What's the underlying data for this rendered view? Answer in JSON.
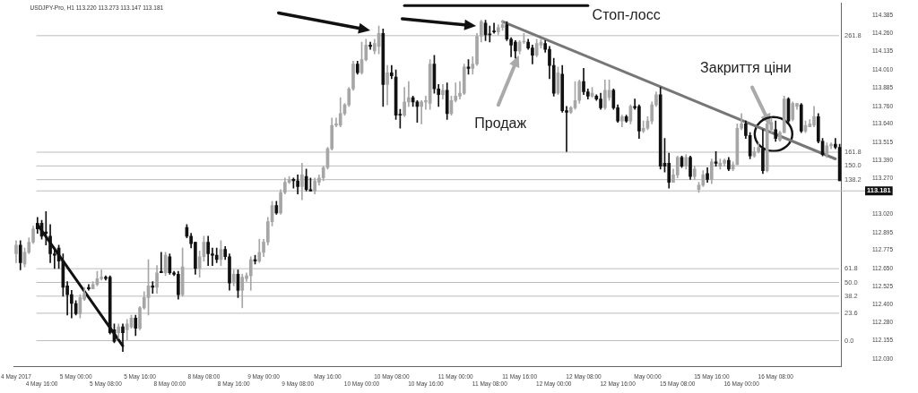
{
  "chart_data": {
    "type": "candlestick",
    "title": "USDJPY-Pro, H1 113.220 113.273 113.147 113.181",
    "categories": [
      "4 May 2017",
      null,
      null,
      null,
      null,
      null,
      "4 May 16:00",
      null,
      null,
      null,
      null,
      null,
      null,
      null,
      "5 May 00:00",
      null,
      null,
      null,
      null,
      null,
      null,
      "5 May 08:00",
      null,
      null,
      null,
      null,
      null,
      null,
      null,
      "5 May 16:00",
      null,
      null,
      null,
      null,
      null,
      null,
      "8 May 00:00",
      null,
      null,
      null,
      null,
      null,
      null,
      null,
      "8 May 08:00",
      null,
      null,
      null,
      null,
      null,
      null,
      "8 May 16:00",
      null,
      null,
      null,
      null,
      null,
      null,
      "9 May 00:00",
      null,
      null,
      null,
      null,
      null,
      null,
      null,
      "9 May 08:00",
      null,
      null,
      null,
      null,
      null,
      null,
      "May 16:00",
      null,
      null,
      null,
      null,
      null,
      null,
      null,
      "10 May 00:00",
      null,
      null,
      null,
      null,
      null,
      null,
      "10 May 08:00",
      null,
      null,
      null,
      null,
      null,
      null,
      null,
      "10 May 16:00",
      null,
      null,
      null,
      null,
      null,
      null,
      "11 May 00:00",
      null,
      null,
      null,
      null,
      null,
      null,
      null,
      "11 May 08:00",
      null,
      null,
      null,
      null,
      null,
      null,
      "11 May 16:00",
      null,
      null,
      null,
      null,
      null,
      null,
      null,
      "12 May 00:00",
      null,
      null,
      null,
      null,
      null,
      null,
      "12 May 08:00",
      null,
      null,
      null,
      null,
      null,
      null,
      null,
      "12 May 16:00",
      null,
      null,
      null,
      null,
      null,
      null,
      "May 00:00",
      null,
      null,
      null,
      null,
      null,
      null,
      "15 May 08:00",
      null,
      null,
      null,
      null,
      null,
      null,
      null,
      "15 May 16:00",
      null,
      null,
      null,
      null,
      null,
      null,
      "16 May 00:00",
      null,
      null,
      null,
      null,
      null,
      null,
      null,
      "16 May 08:00",
      null,
      null,
      null,
      null,
      null,
      null,
      null,
      null,
      null,
      null,
      null,
      null,
      null,
      null,
      null
    ],
    "ohlc": [
      [
        112.75,
        112.84,
        112.69,
        112.81
      ],
      [
        112.81,
        112.84,
        112.64,
        112.69
      ],
      [
        112.68,
        112.79,
        112.66,
        112.76
      ],
      [
        112.76,
        112.86,
        112.75,
        112.83
      ],
      [
        112.83,
        112.94,
        112.82,
        112.92
      ],
      [
        112.96,
        113.0,
        112.89,
        112.92
      ],
      [
        112.96,
        112.98,
        112.85,
        112.87
      ],
      [
        112.9,
        113.04,
        112.81,
        112.89
      ],
      [
        112.87,
        112.95,
        112.69,
        112.75
      ],
      [
        112.75,
        112.79,
        112.65,
        112.74
      ],
      [
        112.79,
        112.81,
        112.65,
        112.7
      ],
      [
        112.7,
        112.75,
        112.46,
        112.52
      ],
      [
        112.53,
        112.56,
        112.33,
        112.47
      ],
      [
        112.47,
        112.5,
        112.31,
        112.41
      ],
      [
        112.41,
        112.43,
        112.33,
        112.34
      ],
      [
        112.34,
        112.47,
        112.31,
        112.45
      ],
      [
        112.44,
        112.52,
        112.43,
        112.48
      ],
      [
        112.52,
        112.54,
        112.5,
        112.51
      ],
      [
        112.51,
        112.56,
        112.51,
        112.54
      ],
      [
        112.54,
        112.63,
        112.53,
        112.58
      ],
      [
        112.58,
        112.64,
        112.57,
        112.59
      ],
      [
        112.59,
        112.6,
        112.57,
        112.58
      ],
      [
        112.59,
        112.6,
        112.2,
        112.21
      ],
      [
        112.23,
        112.27,
        112.14,
        112.15
      ],
      [
        112.21,
        112.27,
        112.17,
        112.25
      ],
      [
        112.25,
        112.27,
        112.08,
        112.21
      ],
      [
        112.23,
        112.3,
        112.16,
        112.27
      ],
      [
        112.25,
        112.33,
        112.24,
        112.31
      ],
      [
        112.31,
        112.33,
        112.19,
        112.24
      ],
      [
        112.24,
        112.39,
        112.23,
        112.38
      ],
      [
        112.38,
        112.49,
        112.37,
        112.45
      ],
      [
        112.45,
        112.71,
        112.33,
        112.53
      ],
      [
        112.53,
        112.56,
        112.48,
        112.52
      ],
      [
        112.52,
        112.67,
        112.48,
        112.62
      ],
      [
        112.63,
        112.76,
        112.62,
        112.62
      ],
      [
        112.62,
        112.76,
        112.6,
        112.74
      ],
      [
        112.73,
        112.75,
        112.61,
        112.62
      ],
      [
        112.62,
        112.63,
        112.6,
        112.61
      ],
      [
        112.61,
        112.63,
        112.44,
        112.47
      ],
      [
        112.47,
        112.79,
        112.46,
        112.66
      ],
      [
        112.93,
        112.95,
        112.86,
        112.87
      ],
      [
        112.87,
        112.89,
        112.79,
        112.82
      ],
      [
        112.83,
        112.83,
        112.61,
        112.65
      ],
      [
        112.65,
        112.77,
        112.59,
        112.73
      ],
      [
        112.73,
        112.87,
        112.7,
        112.83
      ],
      [
        112.83,
        112.87,
        112.67,
        112.75
      ],
      [
        112.75,
        112.79,
        112.67,
        112.74
      ],
      [
        112.74,
        112.79,
        112.69,
        112.71
      ],
      [
        112.71,
        112.84,
        112.67,
        112.78
      ],
      [
        112.78,
        112.8,
        112.71,
        112.73
      ],
      [
        112.73,
        112.75,
        112.5,
        112.55
      ],
      [
        112.55,
        112.64,
        112.53,
        112.61
      ],
      [
        112.61,
        112.64,
        112.45,
        112.5
      ],
      [
        112.5,
        112.61,
        112.38,
        112.59
      ],
      [
        112.58,
        112.62,
        112.56,
        112.6
      ],
      [
        112.6,
        112.73,
        112.5,
        112.71
      ],
      [
        112.71,
        112.74,
        112.68,
        112.7
      ],
      [
        112.7,
        112.85,
        112.69,
        112.76
      ],
      [
        112.76,
        112.85,
        112.73,
        112.83
      ],
      [
        112.83,
        113.0,
        112.81,
        112.97
      ],
      [
        112.97,
        113.11,
        112.94,
        113.08
      ],
      [
        113.08,
        113.11,
        113.02,
        113.03
      ],
      [
        113.03,
        113.19,
        113.02,
        113.17
      ],
      [
        113.17,
        113.27,
        113.16,
        113.24
      ],
      [
        113.24,
        113.28,
        113.23,
        113.26
      ],
      [
        113.26,
        113.27,
        113.2,
        113.25
      ],
      [
        113.25,
        113.29,
        113.16,
        113.21
      ],
      [
        113.21,
        113.37,
        113.12,
        113.29
      ],
      [
        113.28,
        113.33,
        113.18,
        113.19
      ],
      [
        113.19,
        113.27,
        113.18,
        113.18
      ],
      [
        113.18,
        113.27,
        113.16,
        113.25
      ],
      [
        113.24,
        113.29,
        113.22,
        113.27
      ],
      [
        113.27,
        113.35,
        113.25,
        113.34
      ],
      [
        113.34,
        113.48,
        113.33,
        113.47
      ],
      [
        113.47,
        113.68,
        113.46,
        113.63
      ],
      [
        113.63,
        113.68,
        113.62,
        113.64
      ],
      [
        113.63,
        113.82,
        113.62,
        113.71
      ],
      [
        113.71,
        113.78,
        113.7,
        113.77
      ],
      [
        113.77,
        113.89,
        113.76,
        113.88
      ],
      [
        113.88,
        114.07,
        113.87,
        114.05
      ],
      [
        114.05,
        114.07,
        113.98,
        113.99
      ],
      [
        113.99,
        114.2,
        113.98,
        114.08
      ],
      [
        114.08,
        114.22,
        114.07,
        114.18
      ],
      [
        114.18,
        114.2,
        114.15,
        114.17
      ],
      [
        114.14,
        114.22,
        114.12,
        114.19
      ],
      [
        114.17,
        114.31,
        114.12,
        114.26
      ],
      [
        114.26,
        114.29,
        113.76,
        113.91
      ],
      [
        113.91,
        114.04,
        113.77,
        113.99
      ],
      [
        113.99,
        114.04,
        113.95,
        113.97
      ],
      [
        113.96,
        114.01,
        113.67,
        113.7
      ],
      [
        113.7,
        113.74,
        113.61,
        113.7
      ],
      [
        113.7,
        113.89,
        113.69,
        113.79
      ],
      [
        113.79,
        113.93,
        113.76,
        113.82
      ],
      [
        113.82,
        113.83,
        113.76,
        113.79
      ],
      [
        113.79,
        113.8,
        113.65,
        113.76
      ],
      [
        113.76,
        113.8,
        113.64,
        113.79
      ],
      [
        113.79,
        113.83,
        113.74,
        113.8
      ],
      [
        113.78,
        114.08,
        113.74,
        114.05
      ],
      [
        114.05,
        114.11,
        113.85,
        113.88
      ],
      [
        113.88,
        113.91,
        113.76,
        113.84
      ],
      [
        113.84,
        113.91,
        113.81,
        113.87
      ],
      [
        113.87,
        113.92,
        113.67,
        113.71
      ],
      [
        113.71,
        113.83,
        113.7,
        113.8
      ],
      [
        113.8,
        113.92,
        113.79,
        113.83
      ],
      [
        113.83,
        113.93,
        113.81,
        113.85
      ],
      [
        113.85,
        114.05,
        113.84,
        114.03
      ],
      [
        114.03,
        114.08,
        113.98,
        114.02
      ],
      [
        114.02,
        114.1,
        113.98,
        114.05
      ],
      [
        114.05,
        114.26,
        114.04,
        114.24
      ],
      [
        114.24,
        114.35,
        114.2,
        114.34
      ],
      [
        114.33,
        114.35,
        114.21,
        114.25
      ],
      [
        114.25,
        114.31,
        114.2,
        114.25
      ],
      [
        114.27,
        114.33,
        114.26,
        114.27
      ],
      [
        114.27,
        114.32,
        114.25,
        114.3
      ],
      [
        114.3,
        114.35,
        114.28,
        114.32
      ],
      [
        114.32,
        114.34,
        114.21,
        114.22
      ],
      [
        114.22,
        114.23,
        114.1,
        114.18
      ],
      [
        114.2,
        114.21,
        114.09,
        114.14
      ],
      [
        114.14,
        114.21,
        114.12,
        114.2
      ],
      [
        114.2,
        114.26,
        114.19,
        114.2
      ],
      [
        114.2,
        114.22,
        114.15,
        114.16
      ],
      [
        114.16,
        114.18,
        114.05,
        114.11
      ],
      [
        114.11,
        114.22,
        114.1,
        114.19
      ],
      [
        114.18,
        114.22,
        114.16,
        114.2
      ],
      [
        114.19,
        114.21,
        114.13,
        114.15
      ],
      [
        114.15,
        114.17,
        113.95,
        114.04
      ],
      [
        114.04,
        114.09,
        113.83,
        113.85
      ],
      [
        113.85,
        114.03,
        113.84,
        113.99
      ],
      [
        113.98,
        114.04,
        113.72,
        113.73
      ],
      [
        113.73,
        113.76,
        113.45,
        113.72
      ],
      [
        113.72,
        113.76,
        113.71,
        113.75
      ],
      [
        113.75,
        113.93,
        113.74,
        113.8
      ],
      [
        113.8,
        113.94,
        113.78,
        113.93
      ],
      [
        113.93,
        114.02,
        113.84,
        113.86
      ],
      [
        113.86,
        113.88,
        113.81,
        113.83
      ],
      [
        113.83,
        113.89,
        113.82,
        113.85
      ],
      [
        113.83,
        113.84,
        113.8,
        113.81
      ],
      [
        113.81,
        113.85,
        113.74,
        113.75
      ],
      [
        113.75,
        113.94,
        113.74,
        113.87
      ],
      [
        113.82,
        113.94,
        113.8,
        113.87
      ],
      [
        113.87,
        113.88,
        113.74,
        113.75
      ],
      [
        113.75,
        113.77,
        113.65,
        113.66
      ],
      [
        113.66,
        113.7,
        113.62,
        113.69
      ],
      [
        113.69,
        113.7,
        113.65,
        113.66
      ],
      [
        113.66,
        113.77,
        113.64,
        113.76
      ],
      [
        113.76,
        113.81,
        113.74,
        113.75
      ],
      [
        113.76,
        113.77,
        113.54,
        113.59
      ],
      [
        113.59,
        113.66,
        113.58,
        113.61
      ],
      [
        113.61,
        113.69,
        113.6,
        113.66
      ],
      [
        113.66,
        113.79,
        113.64,
        113.77
      ],
      [
        113.77,
        113.86,
        113.76,
        113.84
      ],
      [
        113.84,
        113.89,
        113.33,
        113.35
      ],
      [
        113.37,
        113.54,
        113.31,
        113.35
      ],
      [
        113.37,
        113.44,
        113.2,
        113.24
      ],
      [
        113.24,
        113.33,
        113.24,
        113.29
      ],
      [
        113.29,
        113.42,
        113.27,
        113.41
      ],
      [
        113.41,
        113.42,
        113.34,
        113.35
      ],
      [
        113.35,
        113.43,
        113.33,
        113.41
      ],
      [
        113.41,
        113.42,
        113.26,
        113.28
      ],
      [
        113.28,
        113.35,
        113.26,
        113.33
      ],
      [
        113.19,
        113.24,
        113.17,
        113.22
      ],
      [
        113.22,
        113.32,
        113.21,
        113.29
      ],
      [
        113.3,
        113.34,
        113.24,
        113.26
      ],
      [
        113.26,
        113.4,
        113.23,
        113.38
      ],
      [
        113.38,
        113.45,
        113.35,
        113.37
      ],
      [
        113.35,
        113.4,
        113.33,
        113.37
      ],
      [
        113.37,
        113.4,
        113.35,
        113.39
      ],
      [
        113.39,
        113.41,
        113.32,
        113.33
      ],
      [
        113.33,
        113.38,
        113.32,
        113.36
      ],
      [
        113.36,
        113.64,
        113.36,
        113.61
      ],
      [
        113.61,
        113.71,
        113.6,
        113.64
      ],
      [
        113.64,
        113.66,
        113.54,
        113.56
      ],
      [
        113.56,
        113.58,
        113.4,
        113.42
      ],
      [
        113.42,
        113.48,
        113.41,
        113.45
      ],
      [
        113.45,
        113.51,
        113.44,
        113.48
      ],
      [
        113.47,
        113.6,
        113.3,
        113.32
      ],
      [
        113.32,
        113.66,
        113.31,
        113.64
      ],
      [
        113.6,
        113.68,
        113.58,
        113.65
      ],
      [
        113.6,
        113.66,
        113.52,
        113.54
      ],
      [
        113.53,
        113.59,
        113.52,
        113.58
      ],
      [
        113.58,
        113.83,
        113.58,
        113.81
      ],
      [
        113.81,
        113.82,
        113.64,
        113.66
      ],
      [
        113.67,
        113.79,
        113.66,
        113.78
      ],
      [
        113.76,
        113.78,
        113.74,
        113.78
      ],
      [
        113.77,
        113.78,
        113.58,
        113.59
      ],
      [
        113.59,
        113.66,
        113.58,
        113.63
      ],
      [
        113.62,
        113.67,
        113.62,
        113.64
      ],
      [
        113.63,
        113.76,
        113.62,
        113.69
      ],
      [
        113.69,
        113.71,
        113.51,
        113.52
      ],
      [
        113.52,
        113.54,
        113.42,
        113.43
      ],
      [
        113.43,
        113.51,
        113.41,
        113.49
      ],
      [
        113.49,
        113.51,
        113.47,
        113.5
      ],
      [
        113.5,
        113.54,
        113.47,
        113.48
      ],
      [
        113.48,
        113.5,
        113.25,
        113.25
      ]
    ],
    "colors": [
      "#a6a6a6",
      "#111111",
      "#a6a6a6",
      "#a6a6a6",
      "#a6a6a6",
      "#111111",
      "#111111",
      "#111111",
      "#111111",
      "#111111",
      "#111111",
      "#111111",
      "#111111",
      "#111111",
      "#111111",
      "#a6a6a6",
      "#a6a6a6",
      "#111111",
      "#a6a6a6",
      "#a6a6a6",
      "#a6a6a6",
      "#111111",
      "#111111",
      "#111111",
      "#a6a6a6",
      "#111111",
      "#a6a6a6",
      "#a6a6a6",
      "#111111",
      "#a6a6a6",
      "#a6a6a6",
      "#a6a6a6",
      "#111111",
      "#a6a6a6",
      "#111111",
      "#a6a6a6",
      "#111111",
      "#111111",
      "#111111",
      "#a6a6a6",
      "#111111",
      "#111111",
      "#111111",
      "#a6a6a6",
      "#a6a6a6",
      "#111111",
      "#111111",
      "#111111",
      "#a6a6a6",
      "#111111",
      "#111111",
      "#a6a6a6",
      "#111111",
      "#a6a6a6",
      "#a6a6a6",
      "#a6a6a6",
      "#111111",
      "#a6a6a6",
      "#a6a6a6",
      "#a6a6a6",
      "#a6a6a6",
      "#111111",
      "#a6a6a6",
      "#a6a6a6",
      "#a6a6a6",
      "#111111",
      "#111111",
      "#a6a6a6",
      "#111111",
      "#111111",
      "#a6a6a6",
      "#a6a6a6",
      "#a6a6a6",
      "#a6a6a6",
      "#a6a6a6",
      "#a6a6a6",
      "#a6a6a6",
      "#a6a6a6",
      "#a6a6a6",
      "#a6a6a6",
      "#111111",
      "#a6a6a6",
      "#a6a6a6",
      "#111111",
      "#a6a6a6",
      "#a6a6a6",
      "#111111",
      "#a6a6a6",
      "#111111",
      "#111111",
      "#111111",
      "#a6a6a6",
      "#a6a6a6",
      "#111111",
      "#111111",
      "#a6a6a6",
      "#a6a6a6",
      "#a6a6a6",
      "#111111",
      "#111111",
      "#a6a6a6",
      "#111111",
      "#a6a6a6",
      "#a6a6a6",
      "#a6a6a6",
      "#a6a6a6",
      "#111111",
      "#a6a6a6",
      "#a6a6a6",
      "#a6a6a6",
      "#111111",
      "#111111",
      "#111111",
      "#a6a6a6",
      "#a6a6a6",
      "#111111",
      "#111111",
      "#111111",
      "#a6a6a6",
      "#a6a6a6",
      "#111111",
      "#111111",
      "#a6a6a6",
      "#a6a6a6",
      "#111111",
      "#111111",
      "#111111",
      "#a6a6a6",
      "#111111",
      "#111111",
      "#a6a6a6",
      "#a6a6a6",
      "#a6a6a6",
      "#111111",
      "#111111",
      "#a6a6a6",
      "#111111",
      "#111111",
      "#a6a6a6",
      "#a6a6a6",
      "#111111",
      "#111111",
      "#a6a6a6",
      "#111111",
      "#a6a6a6",
      "#111111",
      "#111111",
      "#a6a6a6",
      "#a6a6a6",
      "#a6a6a6",
      "#a6a6a6",
      "#111111",
      "#111111",
      "#111111",
      "#a6a6a6",
      "#a6a6a6",
      "#111111",
      "#a6a6a6",
      "#111111",
      "#a6a6a6",
      "#a6a6a6",
      "#a6a6a6",
      "#111111",
      "#a6a6a6",
      "#111111",
      "#a6a6a6",
      "#a6a6a6",
      "#111111",
      "#a6a6a6",
      "#a6a6a6",
      "#a6a6a6",
      "#111111",
      "#111111",
      "#a6a6a6",
      "#a6a6a6",
      "#111111",
      "#a6a6a6",
      "#a6a6a6",
      "#111111",
      "#a6a6a6",
      "#a6a6a6",
      "#111111",
      "#a6a6a6",
      "#a6a6a6",
      "#111111",
      "#a6a6a6",
      "#a6a6a6",
      "#a6a6a6",
      "#111111",
      "#111111",
      "#a6a6a6",
      "#a6a6a6",
      "#111111",
      "#111111"
    ],
    "series": [
      {
        "type": "line",
        "color": "#111111",
        "values": [
          null,
          null,
          null,
          null,
          null,
          112.95,
          null,
          null,
          null,
          null,
          null,
          null,
          null,
          null,
          null,
          null,
          null,
          null,
          null,
          null,
          null,
          null,
          null,
          null,
          null,
          112.12,
          null,
          null,
          null,
          null,
          null,
          null,
          null,
          null,
          null,
          null,
          null,
          null,
          null,
          null,
          null,
          null,
          null,
          null,
          null,
          null,
          null,
          null,
          null,
          null,
          null,
          null,
          null,
          null,
          null,
          null,
          null,
          null,
          null,
          null,
          null,
          null,
          null,
          null,
          null,
          null,
          null,
          null,
          null,
          null,
          null,
          null,
          null,
          null,
          null,
          null,
          null,
          null,
          null,
          null,
          null,
          null,
          null,
          null,
          null,
          null,
          null,
          null,
          null,
          null,
          null,
          null,
          null,
          null,
          null,
          null,
          null,
          null,
          null,
          null,
          null,
          null,
          null,
          null,
          null,
          null,
          null,
          null,
          null,
          null,
          null,
          null,
          null,
          null,
          null,
          null,
          null,
          null,
          null,
          null,
          null,
          null,
          null,
          null,
          null,
          null,
          null,
          null,
          null,
          null,
          null,
          null,
          null,
          null,
          null,
          null,
          null,
          null,
          null,
          null,
          null,
          null,
          null,
          null,
          null,
          null,
          null,
          null,
          null,
          null,
          null,
          null,
          null,
          null,
          null,
          null,
          null,
          null,
          null,
          null,
          null,
          null,
          null,
          null,
          null,
          null,
          null,
          null,
          null,
          null,
          null,
          null,
          null,
          null,
          null,
          null,
          null,
          null,
          null,
          null,
          null,
          null,
          null,
          null,
          null,
          null,
          null,
          null,
          null,
          null,
          null,
          null,
          null,
          null
        ]
      },
      {
        "type": "line",
        "color": "#777777",
        "values": [
          null,
          null,
          null,
          null,
          null,
          null,
          null,
          null,
          null,
          null,
          null,
          null,
          null,
          null,
          null,
          null,
          null,
          null,
          null,
          null,
          null,
          null,
          null,
          null,
          null,
          null,
          null,
          null,
          null,
          null,
          null,
          null,
          null,
          null,
          null,
          null,
          null,
          null,
          null,
          null,
          null,
          null,
          null,
          null,
          null,
          null,
          null,
          null,
          null,
          null,
          null,
          null,
          null,
          null,
          null,
          null,
          null,
          null,
          null,
          null,
          null,
          null,
          null,
          null,
          null,
          null,
          null,
          null,
          null,
          null,
          null,
          null,
          null,
          null,
          null,
          null,
          null,
          null,
          null,
          null,
          null,
          null,
          null,
          null,
          null,
          null,
          null,
          null,
          null,
          null,
          null,
          null,
          null,
          null,
          null,
          null,
          null,
          null,
          null,
          null,
          null,
          null,
          null,
          null,
          null,
          null,
          null,
          null,
          null,
          null,
          null,
          null,
          null,
          null,
          114.34,
          null,
          null,
          null,
          null,
          null,
          null,
          null,
          null,
          null,
          null,
          null,
          null,
          null,
          null,
          null,
          null,
          null,
          null,
          null,
          null,
          null,
          null,
          null,
          null,
          null,
          null,
          null,
          null,
          null,
          null,
          null,
          null,
          null,
          null,
          null,
          null,
          null,
          null,
          null,
          null,
          null,
          null,
          null,
          null,
          null,
          null,
          null,
          null,
          null,
          null,
          null,
          null,
          null,
          null,
          null,
          null,
          null,
          null,
          null,
          null,
          null,
          null,
          null,
          null,
          null,
          null,
          null,
          null,
          null,
          null,
          null,
          null,
          null,
          null,
          null,
          null,
          null,
          113.4,
          null
        ]
      },
      {
        "type": "line",
        "color": "#111111",
        "values": [
          null,
          null,
          null,
          null,
          null,
          null,
          null,
          null,
          null,
          null,
          null,
          null,
          null,
          null,
          null,
          null,
          null,
          null,
          null,
          null,
          null,
          null,
          null,
          null,
          null,
          null,
          null,
          null,
          null,
          null,
          null,
          null,
          null,
          null,
          null,
          null,
          null,
          null,
          null,
          null,
          null,
          null,
          null,
          null,
          null,
          null,
          null,
          null,
          null,
          null,
          null,
          null,
          null,
          null,
          null,
          null,
          null,
          null,
          null,
          null,
          null,
          null,
          null,
          null,
          null,
          null,
          null,
          null,
          null,
          null,
          null,
          null,
          null,
          null,
          null,
          null,
          null,
          null,
          null,
          null,
          null,
          null,
          null,
          null,
          null,
          null,
          null,
          null,
          null,
          null,
          null,
          114.45,
          null,
          null,
          null,
          null,
          null,
          null,
          null,
          null,
          null,
          null,
          null,
          null,
          null,
          null,
          null,
          null,
          null,
          null,
          null,
          null,
          null,
          null,
          null,
          null,
          null,
          null,
          null,
          null,
          null,
          null,
          null,
          null,
          null,
          null,
          null,
          null,
          null,
          null,
          null,
          null,
          null,
          null,
          114.45,
          null,
          null,
          null,
          null,
          null,
          null,
          null,
          null,
          null,
          null,
          null,
          null,
          null,
          null,
          null,
          null,
          null,
          null,
          null,
          null,
          null,
          null,
          null,
          null,
          null,
          null,
          null,
          null,
          null,
          null,
          null,
          null,
          null,
          null,
          null,
          null,
          null,
          null,
          null,
          null,
          null,
          null,
          null,
          null,
          null,
          null,
          null,
          null,
          null,
          null,
          null,
          null,
          null,
          null,
          null,
          null,
          null,
          null,
          null
        ]
      }
    ],
    "ylim": [
      111.98,
      114.47
    ],
    "yticks": [
      114.385,
      {
        "value": 114.26,
        "label": "114.260"
      },
      114.135,
      {
        "value": 114.01,
        "label": "114.010"
      },
      113.885,
      {
        "value": 113.76,
        "label": "113.760"
      },
      {
        "value": 113.64,
        "label": "113.640"
      },
      113.515,
      {
        "value": 113.39,
        "label": "113.390"
      },
      {
        "value": 113.27,
        "label": "113.270"
      },
      {
        "value": 113.02,
        "label": "113.020"
      },
      112.895,
      112.775,
      {
        "value": 112.65,
        "label": "112.650"
      },
      112.525,
      {
        "value": 112.4,
        "label": "112.400"
      },
      {
        "value": 112.28,
        "label": "112.280"
      },
      112.155,
      {
        "value": 112.03,
        "label": "112.030"
      }
    ],
    "ref_lines": [
      {
        "axis": "y",
        "value": 114.244,
        "color": "#bbbbbb"
      },
      {
        "axis": "y",
        "value": 113.446,
        "color": "#bbbbbb"
      },
      {
        "axis": "y",
        "value": 113.352,
        "color": "#bbbbbb"
      },
      {
        "axis": "y",
        "value": 113.258,
        "color": "#bbbbbb"
      },
      {
        "axis": "y",
        "value": 113.181,
        "label": "113.181",
        "color": "#bbbbbb"
      },
      {
        "axis": "y",
        "value": 112.648,
        "color": "#bbbbbb"
      },
      {
        "axis": "y",
        "value": 112.554,
        "color": "#bbbbbb"
      },
      {
        "axis": "y",
        "value": 112.46,
        "color": "#bbbbbb"
      },
      {
        "axis": "y",
        "value": 112.343,
        "color": "#bbbbbb"
      },
      {
        "axis": "y",
        "value": 112.155,
        "color": "#bbbbbb"
      }
    ],
    "annotations": [
      "Стоп-лосс",
      "Продаж",
      "Закриття ціни",
      "261.8",
      "161.8",
      "150.0",
      "138.2",
      "61.8",
      "50.0",
      "38.2",
      "23.6",
      "0.0"
    ]
  }
}
